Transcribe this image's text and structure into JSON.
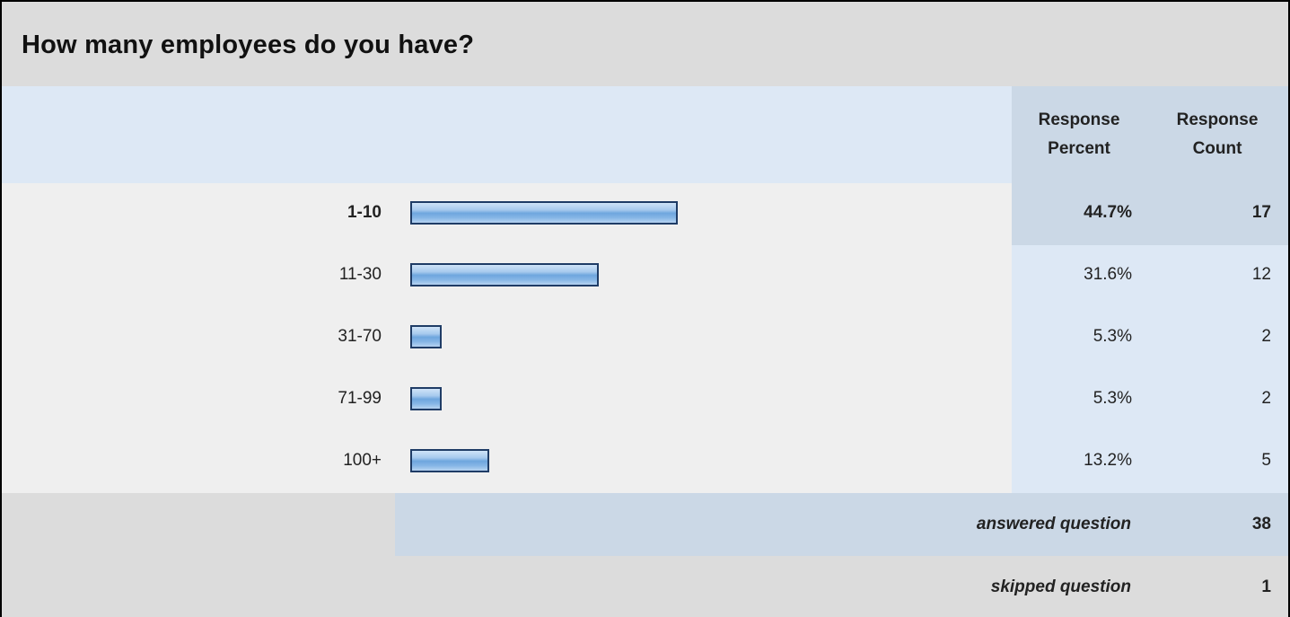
{
  "title": "How many employees do you have?",
  "headers": {
    "percent_line1": "Response",
    "percent_line2": "Percent",
    "count_line1": "Response",
    "count_line2": "Count"
  },
  "rows": [
    {
      "label": "1-10",
      "percent": "44.7%",
      "count": "17"
    },
    {
      "label": "11-30",
      "percent": "31.6%",
      "count": "12"
    },
    {
      "label": "31-70",
      "percent": "5.3%",
      "count": "2"
    },
    {
      "label": "71-99",
      "percent": "5.3%",
      "count": "2"
    },
    {
      "label": "100+",
      "percent": "13.2%",
      "count": "5"
    }
  ],
  "summary": {
    "answered_label": "answered question",
    "answered_value": "38",
    "skipped_label": "skipped question",
    "skipped_value": "1"
  },
  "colors": {
    "bar_border": "#1f3c66",
    "bar_fill": "#8bb8e8",
    "header_bg": "#dde8f5",
    "highlight_bg": "#cbd8e6",
    "frame_bg": "#dcdcdc"
  },
  "chart_data": {
    "type": "bar",
    "orientation": "horizontal",
    "title": "How many employees do you have?",
    "categories": [
      "1-10",
      "11-30",
      "31-70",
      "71-99",
      "100+"
    ],
    "values": [
      44.7,
      31.6,
      5.3,
      5.3,
      13.2
    ],
    "counts": [
      17,
      12,
      2,
      2,
      5
    ],
    "xlim": [
      0,
      100
    ],
    "grid": false,
    "legend": "none"
  }
}
